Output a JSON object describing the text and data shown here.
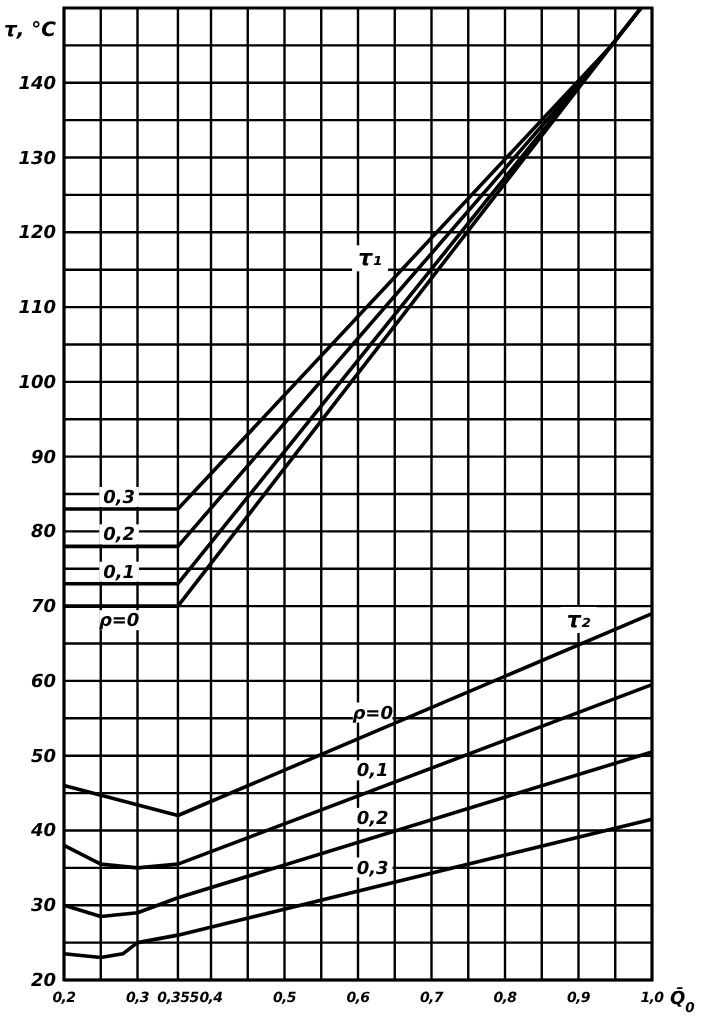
{
  "chart_data": {
    "type": "line",
    "ylabel": "τ, °C",
    "xlabel": "Q̄$_{0}$",
    "xlim": [
      0.2,
      1.0
    ],
    "ylim": [
      20,
      150
    ],
    "xticks": [
      {
        "value": 0.2,
        "label": "0,2"
      },
      {
        "value": 0.25,
        "label": null
      },
      {
        "value": 0.3,
        "label": "0,3"
      },
      {
        "value": 0.355,
        "label": "0,355"
      },
      {
        "value": 0.4,
        "label": "0,4"
      },
      {
        "value": 0.45,
        "label": null
      },
      {
        "value": 0.5,
        "label": "0,5"
      },
      {
        "value": 0.55,
        "label": null
      },
      {
        "value": 0.6,
        "label": "0,6"
      },
      {
        "value": 0.65,
        "label": null
      },
      {
        "value": 0.7,
        "label": "0,7"
      },
      {
        "value": 0.75,
        "label": null
      },
      {
        "value": 0.8,
        "label": "0,8"
      },
      {
        "value": 0.85,
        "label": null
      },
      {
        "value": 0.9,
        "label": "0,9"
      },
      {
        "value": 0.95,
        "label": null
      },
      {
        "value": 1.0,
        "label": "1,0"
      }
    ],
    "yticks": [
      20,
      {
        "value": 25,
        "label": null
      },
      30,
      {
        "value": 35,
        "label": null
      },
      40,
      {
        "value": 45,
        "label": null
      },
      50,
      {
        "value": 55,
        "label": null
      },
      60,
      {
        "value": 65,
        "label": null
      },
      70,
      {
        "value": 75,
        "label": null
      },
      80,
      {
        "value": 85,
        "label": null
      },
      90,
      {
        "value": 95,
        "label": null
      },
      100,
      {
        "value": 105,
        "label": null
      },
      110,
      {
        "value": 115,
        "label": null
      },
      120,
      {
        "value": 125,
        "label": null
      },
      130,
      {
        "value": 135,
        "label": null
      },
      140,
      {
        "value": 145,
        "label": null
      }
    ],
    "grid": true,
    "legend": false,
    "marker": "none",
    "line_style": "solid",
    "series": [
      {
        "name": "0,3",
        "color": "#000000",
        "x": [
          0.2,
          0.355,
          0.945,
          0.985
        ],
        "values": [
          83,
          83,
          145,
          150
        ]
      },
      {
        "name": "0,2",
        "color": "#000000",
        "x": [
          0.2,
          0.355,
          0.945,
          0.985
        ],
        "values": [
          78,
          78,
          145,
          150
        ]
      },
      {
        "name": "0,1",
        "color": "#000000",
        "x": [
          0.2,
          0.355,
          0.945,
          0.985
        ],
        "values": [
          73,
          73,
          145,
          150
        ]
      },
      {
        "name": "ρ=0",
        "color": "#000000",
        "x": [
          0.2,
          0.355,
          0.945,
          0.985
        ],
        "values": [
          70,
          70,
          145,
          150
        ]
      },
      {
        "name": "ρ=0",
        "color": "#000000",
        "x": [
          0.2,
          0.355,
          1.0
        ],
        "values": [
          46,
          42,
          69
        ]
      },
      {
        "name": "0,1",
        "color": "#000000",
        "x": [
          0.2,
          0.25,
          0.3,
          0.355,
          1.0
        ],
        "values": [
          38,
          35.5,
          35,
          35.5,
          59.5
        ]
      },
      {
        "name": "0,2",
        "color": "#000000",
        "x": [
          0.2,
          0.25,
          0.3,
          0.355,
          1.0
        ],
        "values": [
          30,
          28.5,
          29,
          31,
          50.5
        ]
      },
      {
        "name": "0,3",
        "color": "#000000",
        "x": [
          0.2,
          0.25,
          0.28,
          0.3,
          0.355,
          1.0
        ],
        "values": [
          23.5,
          23,
          23.5,
          25,
          26,
          41.5
        ]
      }
    ],
    "annotations": [
      "τ₁",
      "τ₂"
    ]
  }
}
